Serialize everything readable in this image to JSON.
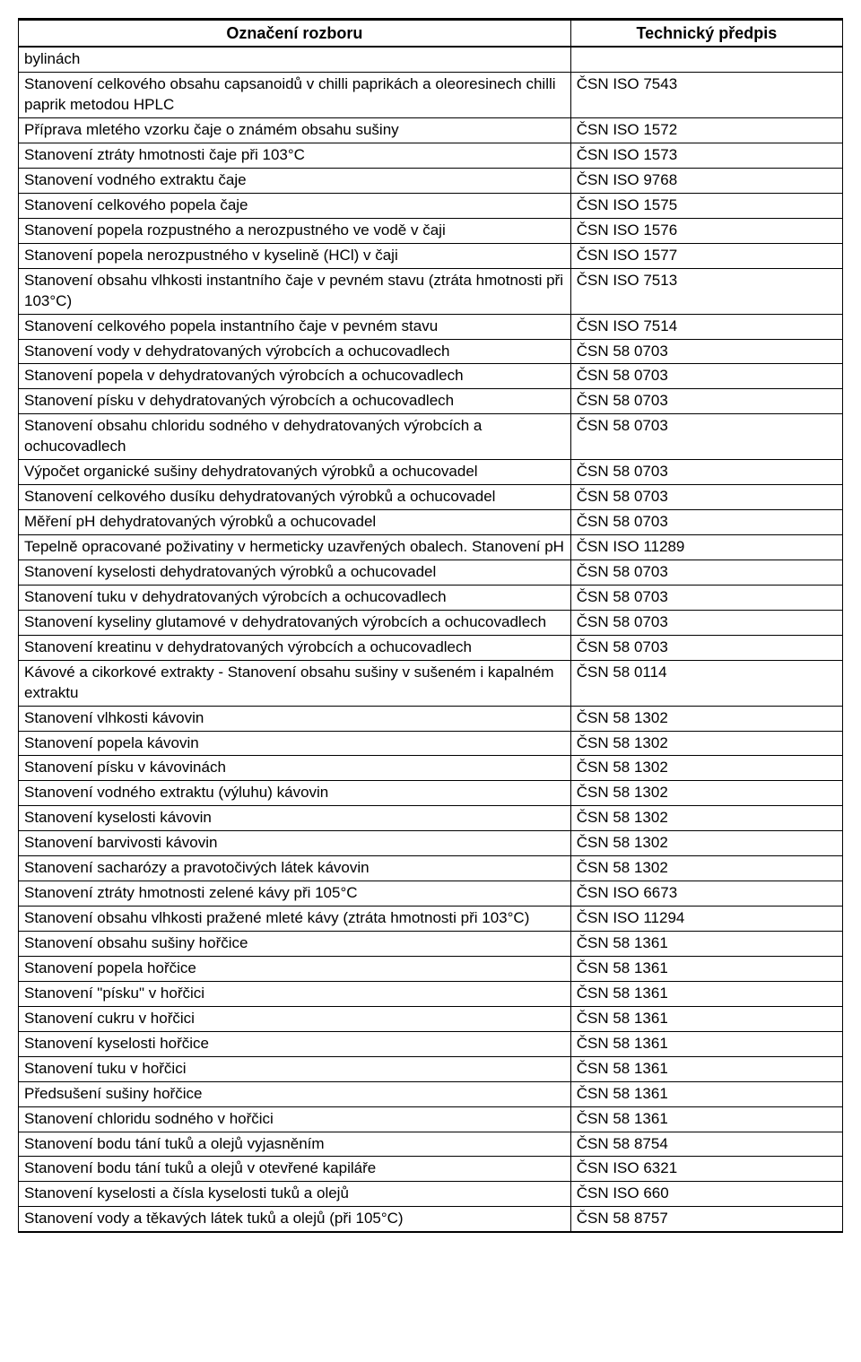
{
  "table": {
    "columns": [
      "Označení rozboru",
      "Technický předpis"
    ],
    "col_widths": [
      "67%",
      "33%"
    ],
    "header_bg": "#ffffff",
    "border_color": "#000000",
    "font_family": "Arial",
    "header_fontsize": 18,
    "cell_fontsize": 17,
    "rows": [
      [
        "bylinách",
        ""
      ],
      [
        "Stanovení celkového obsahu capsanoidů v chilli paprikách a oleoresinech chilli paprik metodou HPLC",
        "ČSN ISO 7543"
      ],
      [
        "Příprava mletého vzorku čaje o známém obsahu sušiny",
        "ČSN ISO 1572"
      ],
      [
        "Stanovení ztráty hmotnosti čaje při 103°C",
        "ČSN ISO 1573"
      ],
      [
        "Stanovení vodného extraktu čaje",
        "ČSN ISO 9768"
      ],
      [
        "Stanovení celkového popela čaje",
        "ČSN ISO 1575"
      ],
      [
        "Stanovení popela rozpustného a nerozpustného ve vodě v čaji",
        "ČSN ISO 1576"
      ],
      [
        "Stanovení popela nerozpustného v kyselině (HCl) v čaji",
        "ČSN ISO 1577"
      ],
      [
        "Stanovení obsahu vlhkosti instantního čaje v pevném stavu (ztráta hmotnosti při 103°C)",
        "ČSN ISO 7513"
      ],
      [
        "Stanovení celkového popela instantního čaje v pevném stavu",
        "ČSN ISO 7514"
      ],
      [
        "Stanovení vody v dehydratovaných výrobcích a ochucovadlech",
        "ČSN 58 0703"
      ],
      [
        "Stanovení popela v dehydratovaných výrobcích a ochucovadlech",
        "ČSN 58 0703"
      ],
      [
        "Stanovení písku v dehydratovaných výrobcích a ochucovadlech",
        "ČSN 58 0703"
      ],
      [
        "Stanovení obsahu chloridu sodného v dehydratovaných výrobcích a ochucovadlech",
        "ČSN 58 0703"
      ],
      [
        "Výpočet organické sušiny dehydratovaných výrobků a ochucovadel",
        "ČSN 58 0703"
      ],
      [
        "Stanovení celkového dusíku dehydratovaných výrobků a ochucovadel",
        "ČSN 58 0703"
      ],
      [
        "Měření pH dehydratovaných výrobků a ochucovadel",
        "ČSN 58 0703"
      ],
      [
        "Tepelně opracované poživatiny v hermeticky uzavřených obalech. Stanovení pH",
        "ČSN ISO 11289"
      ],
      [
        "Stanovení kyselosti dehydratovaných výrobků a ochucovadel",
        "ČSN 58 0703"
      ],
      [
        "Stanovení tuku v dehydratovaných výrobcích a ochucovadlech",
        "ČSN 58 0703"
      ],
      [
        "Stanovení kyseliny glutamové v dehydratovaných výrobcích a ochucovadlech",
        "ČSN 58 0703"
      ],
      [
        "Stanovení kreatinu v dehydratovaných výrobcích a ochucovadlech",
        "ČSN 58 0703"
      ],
      [
        "Kávové a cikorkové extrakty - Stanovení obsahu sušiny v sušeném i kapalném extraktu",
        "ČSN 58 0114"
      ],
      [
        "Stanovení vlhkosti kávovin",
        "ČSN 58 1302"
      ],
      [
        "Stanovení popela kávovin",
        "ČSN 58 1302"
      ],
      [
        "Stanovení písku v kávovinách",
        "ČSN 58 1302"
      ],
      [
        "Stanovení vodného extraktu (výluhu) kávovin",
        "ČSN 58 1302"
      ],
      [
        "Stanovení kyselosti kávovin",
        "ČSN 58 1302"
      ],
      [
        "Stanovení barvivosti kávovin",
        "ČSN 58 1302"
      ],
      [
        "Stanovení sacharózy a pravotočivých látek kávovin",
        "ČSN 58 1302"
      ],
      [
        "Stanovení ztráty hmotnosti zelené kávy při 105°C",
        "ČSN ISO 6673"
      ],
      [
        "Stanovení obsahu vlhkosti pražené mleté kávy (ztráta hmotnosti při 103°C)",
        "ČSN ISO 11294"
      ],
      [
        "Stanovení obsahu sušiny hořčice",
        "ČSN 58 1361"
      ],
      [
        "Stanovení popela hořčice",
        "ČSN 58 1361"
      ],
      [
        "Stanovení \"písku\" v hořčici",
        "ČSN 58 1361"
      ],
      [
        "Stanovení cukru v hořčici",
        "ČSN 58 1361"
      ],
      [
        "Stanovení kyselosti hořčice",
        "ČSN 58 1361"
      ],
      [
        "Stanovení tuku v hořčici",
        "ČSN 58 1361"
      ],
      [
        "Předsušení sušiny hořčice",
        "ČSN 58 1361"
      ],
      [
        "Stanovení chloridu sodného v hořčici",
        "ČSN 58 1361"
      ],
      [
        "Stanovení bodu tání tuků a olejů vyjasněním",
        "ČSN 58 8754"
      ],
      [
        "Stanovení bodu tání tuků a olejů v otevřené kapiláře",
        "ČSN ISO 6321"
      ],
      [
        "Stanovení kyselosti a čísla kyselosti tuků a olejů",
        "ČSN ISO 660"
      ],
      [
        "Stanovení vody a těkavých látek tuků a olejů (při 105°C)",
        "ČSN 58 8757"
      ]
    ]
  }
}
